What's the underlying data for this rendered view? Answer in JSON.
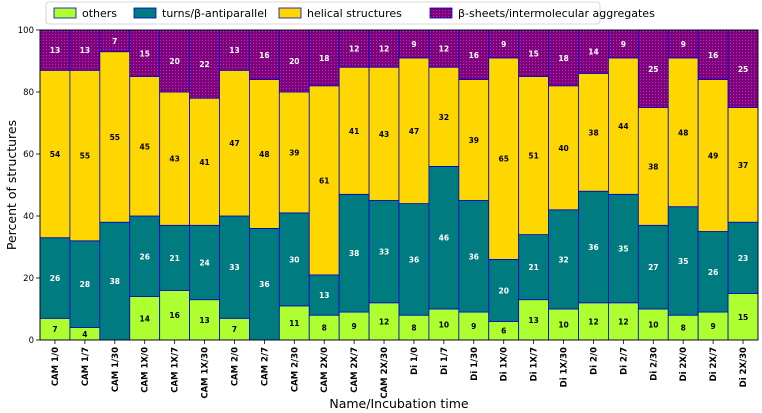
{
  "chart_data": {
    "type": "bar",
    "stacked": true,
    "xlabel": "Name/Incubation time",
    "ylabel": "Percent of structures",
    "ylim": [
      0,
      100
    ],
    "yticks": [
      0,
      20,
      40,
      60,
      80,
      100
    ],
    "legend_position": "top",
    "categories": [
      "CAM 1/0",
      "CAM 1/7",
      "CAM 1/30",
      "CAM 1X/0",
      "CAM 1X/7",
      "CAM 1X/30",
      "CAM 2/0",
      "CAM 2/7",
      "CAM 2/30",
      "CAM 2X/0",
      "CAM 2X/7",
      "CAM 2X/30",
      "Di 1/0",
      "Di 1/7",
      "Di 1/30",
      "Di 1X/0",
      "Di 1X/7",
      "Di 1X/30",
      "Di 2/0",
      "Di 2/7",
      "Di 2/30",
      "Di 2X/0",
      "Di 2X/7",
      "Di 2X/30"
    ],
    "series": [
      {
        "name": "others",
        "color": "#adff2f",
        "label_color": "#000000",
        "values": [
          7,
          4,
          0,
          14,
          16,
          13,
          7,
          0,
          11,
          8,
          9,
          12,
          8,
          10,
          9,
          6,
          13,
          10,
          12,
          12,
          10,
          8,
          9,
          15
        ],
        "labels": [
          "7",
          "4",
          "",
          "14",
          "16",
          "13",
          "7",
          "",
          "11",
          "8",
          "9",
          "12",
          "8",
          "10",
          "9",
          "6",
          "13",
          "10",
          "12",
          "12",
          "10",
          "8",
          "9",
          "15"
        ]
      },
      {
        "name": "turns/β-antiparallel",
        "color": "#007b7f",
        "label_color": "#ffffff",
        "values": [
          26,
          28,
          38,
          26,
          21,
          24,
          33,
          36,
          30,
          13,
          38,
          33,
          36,
          46,
          36,
          20,
          21,
          32,
          36,
          35,
          27,
          35,
          26,
          23
        ],
        "labels": [
          "26",
          "28",
          "38",
          "26",
          "21",
          "24",
          "33",
          "36",
          "30",
          "13",
          "38",
          "33",
          "36",
          "46",
          "36",
          "20",
          "21",
          "32",
          "36",
          "35",
          "27",
          "35",
          "26",
          "23"
        ]
      },
      {
        "name": "helical structures",
        "color": "#ffd700",
        "label_color": "#000000",
        "values": [
          54,
          55,
          55,
          45,
          43,
          41,
          47,
          48,
          39,
          61,
          41,
          43,
          47,
          32,
          39,
          65,
          51,
          40,
          38,
          44,
          38,
          48,
          49,
          37
        ],
        "labels": [
          "54",
          "55",
          "55",
          "45",
          "43",
          "41",
          "47",
          "48",
          "39",
          "61",
          "41",
          "43",
          "47",
          "32",
          "39",
          "65",
          "51",
          "40",
          "38",
          "44",
          "38",
          "48",
          "49",
          "37"
        ]
      },
      {
        "name": "β-sheets/intermolecular aggregates",
        "color": "#800080",
        "label_color": "#ffffff",
        "values": [
          13,
          13,
          7,
          15,
          20,
          22,
          13,
          16,
          20,
          18,
          12,
          12,
          9,
          12,
          16,
          9,
          15,
          18,
          14,
          9,
          25,
          9,
          16,
          25
        ],
        "labels": [
          "13",
          "13",
          "7",
          "15",
          "20",
          "22",
          "13",
          "16",
          "20",
          "18",
          "12",
          "12",
          "9",
          "12",
          "16",
          "9",
          "15",
          "18",
          "14",
          "9",
          "25",
          "9",
          "16",
          "25"
        ]
      }
    ]
  }
}
